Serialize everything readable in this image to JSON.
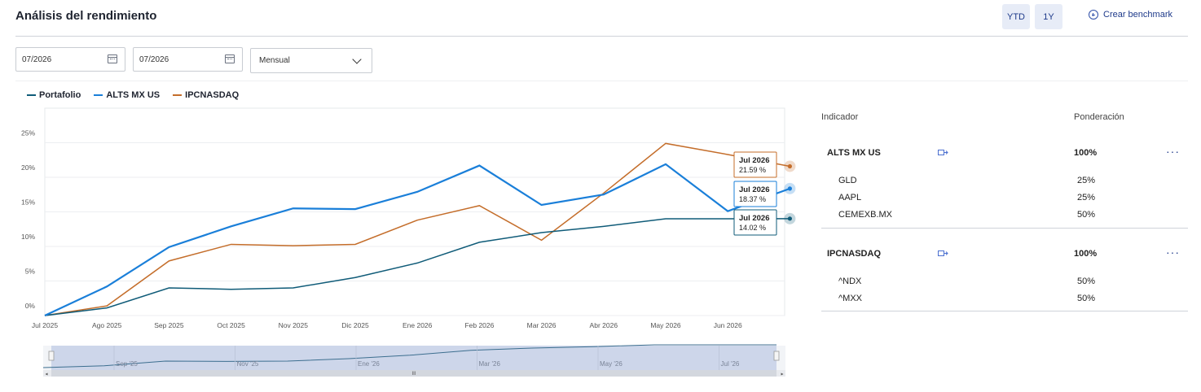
{
  "header": {
    "title": "Análisis del rendimiento",
    "ytd_label": "YTD",
    "one_year_label": "1Y",
    "benchmark_label": "Crear benchmark"
  },
  "filters": {
    "date_from": "07/2026",
    "date_to": "07/2026",
    "frequency": "Mensual"
  },
  "legend": [
    {
      "name": "Portafolio",
      "color": "#0f5b78"
    },
    {
      "name": "ALTS MX US",
      "color": "#1a7fd9"
    },
    {
      "name": "IPCNASDAQ",
      "color": "#c46d2a"
    }
  ],
  "chart_data": {
    "type": "line",
    "x": [
      "Jul 2025",
      "Ago 2025",
      "Sep 2025",
      "Oct 2025",
      "Nov 2025",
      "Dic 2025",
      "Ene 2026",
      "Feb 2026",
      "Mar 2026",
      "Abr 2026",
      "May 2026",
      "Jun 2026",
      "Jul 2026"
    ],
    "y_ticks": [
      "0%",
      "5%",
      "10%",
      "15%",
      "20%",
      "25%"
    ],
    "ylim": [
      0,
      30
    ],
    "series": [
      {
        "name": "Portafolio",
        "color": "#0f5b78",
        "values": [
          0,
          1.1,
          4.0,
          3.8,
          4.0,
          5.5,
          7.6,
          10.6,
          12.0,
          12.9,
          14.0,
          14.0,
          14.02
        ]
      },
      {
        "name": "ALTS MX US",
        "color": "#1a7fd9",
        "values": [
          0,
          4.2,
          9.9,
          12.9,
          15.5,
          15.4,
          17.9,
          21.7,
          16.0,
          17.5,
          21.9,
          15.1,
          18.37
        ]
      },
      {
        "name": "IPCNASDAQ",
        "color": "#c46d2a",
        "values": [
          0,
          1.4,
          7.9,
          10.3,
          10.1,
          10.3,
          13.8,
          15.9,
          10.9,
          17.7,
          24.9,
          23.3,
          21.59
        ]
      }
    ],
    "tooltips": [
      {
        "title": "Jul 2026",
        "value": "21.59 %",
        "color": "#c46d2a"
      },
      {
        "title": "Jul 2026",
        "value": "18.37 %",
        "color": "#1a7fd9"
      },
      {
        "title": "Jul 2026",
        "value": "14.02 %",
        "color": "#0f5b78"
      }
    ],
    "navigator_labels": [
      "Sep '25",
      "Nov '25",
      "Ene '26",
      "Mar '26",
      "May '26",
      "Jul '26"
    ]
  },
  "panel": {
    "col_indicator": "Indicador",
    "col_weight": "Ponderación",
    "groups": [
      {
        "name": "ALTS MX US",
        "weight": "100%",
        "items": [
          {
            "name": "GLD",
            "weight": "25%"
          },
          {
            "name": "AAPL",
            "weight": "25%"
          },
          {
            "name": "CEMEXB.MX",
            "weight": "50%"
          }
        ]
      },
      {
        "name": "IPCNASDAQ",
        "weight": "100%",
        "items": [
          {
            "name": "^NDX",
            "weight": "50%"
          },
          {
            "name": "^MXX",
            "weight": "50%"
          }
        ]
      }
    ],
    "more_label": "···"
  }
}
